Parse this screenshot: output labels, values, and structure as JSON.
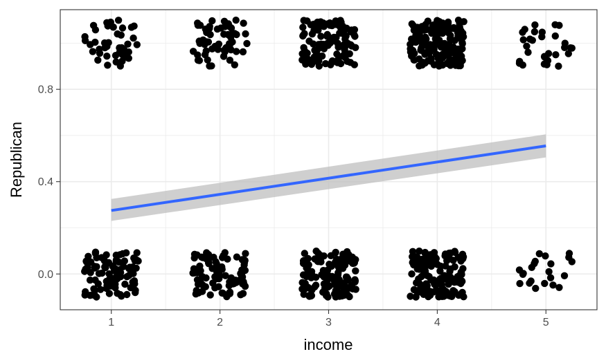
{
  "chart_data": {
    "type": "scatter",
    "title": "",
    "xlabel": "income",
    "ylabel": "Republican",
    "xlim": [
      0.53,
      5.47
    ],
    "ylim": [
      -0.155,
      1.145
    ],
    "x_ticks": [
      1,
      2,
      3,
      4,
      5
    ],
    "x_tick_labels": [
      "1",
      "2",
      "3",
      "4",
      "5"
    ],
    "y_ticks": [
      0.0,
      0.4,
      0.8
    ],
    "y_tick_labels": [
      "0.0",
      "0.4",
      "0.8"
    ],
    "grid": true,
    "legend": "none",
    "jitter": {
      "x": 0.25,
      "y": 0.1
    },
    "points_per_group": {
      "republican_1": [
        [
          1,
          45
        ],
        [
          2,
          60
        ],
        [
          3,
          110
        ],
        [
          4,
          170
        ],
        [
          5,
          30
        ]
      ],
      "republican_0": [
        [
          1,
          95
        ],
        [
          2,
          85
        ],
        [
          3,
          135
        ],
        [
          4,
          150
        ],
        [
          5,
          22
        ]
      ]
    },
    "fit_line": {
      "method": "linear regression",
      "x": [
        1,
        5
      ],
      "y": [
        0.275,
        0.555
      ],
      "ci_lower": [
        0.23,
        0.505
      ],
      "ci_upper": [
        0.325,
        0.605
      ]
    },
    "colors": {
      "points": "#000000",
      "line": "#3366ff",
      "ribbon": "#bfbfbf",
      "panel_border": "#333333",
      "grid": "#ebebeb",
      "tick_text": "#4d4d4d"
    }
  }
}
